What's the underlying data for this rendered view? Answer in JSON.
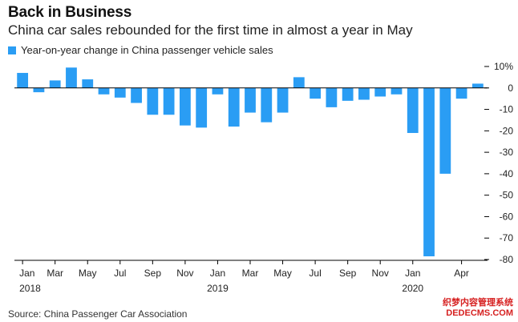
{
  "header": {
    "title": "Back in Business",
    "subtitle": "China car sales rebounded for the first time in almost a year in May"
  },
  "legend": {
    "label": "Year-on-year change in China passenger vehicle sales"
  },
  "source": "Source: China Passenger Car Association",
  "watermark": {
    "line1": "织梦内容管理系统",
    "line2": "DEDECMS.COM"
  },
  "colors": {
    "bar": "#2a9df4",
    "axis": "#000000",
    "text": "#222222"
  },
  "chart_data": {
    "type": "bar",
    "title": "Back in Business",
    "subtitle": "China car sales rebounded for the first time in almost a year in May",
    "legend": [
      "Year-on-year change in China passenger vehicle sales"
    ],
    "ylabel": "",
    "xlabel": "",
    "ylim": [
      -80,
      10
    ],
    "yticks": [
      10,
      0,
      -10,
      -20,
      -30,
      -40,
      -50,
      -60,
      -70,
      -80
    ],
    "ytick_labels": [
      "10%",
      "0",
      "-10",
      "-20",
      "-30",
      "-40",
      "-50",
      "-60",
      "-70",
      "-80"
    ],
    "categories": [
      "Jan 2018",
      "Feb 2018",
      "Mar 2018",
      "Apr 2018",
      "May 2018",
      "Jun 2018",
      "Jul 2018",
      "Aug 2018",
      "Sep 2018",
      "Oct 2018",
      "Nov 2018",
      "Dec 2018",
      "Jan 2019",
      "Feb 2019",
      "Mar 2019",
      "Apr 2019",
      "May 2019",
      "Jun 2019",
      "Jul 2019",
      "Aug 2019",
      "Sep 2019",
      "Oct 2019",
      "Nov 2019",
      "Dec 2019",
      "Jan 2020",
      "Feb 2020",
      "Mar 2020",
      "Apr 2020",
      "May 2020"
    ],
    "values": [
      7,
      -2,
      3.5,
      9.5,
      4,
      -3,
      -4.5,
      -7,
      -12.5,
      -12.5,
      -17.5,
      -18.5,
      -3,
      -18,
      -11.5,
      -16,
      -11.5,
      5,
      -5,
      -9,
      -6,
      -5.5,
      -4,
      -3,
      -21,
      -78.5,
      -40,
      -5,
      2
    ],
    "xtick_labels": [
      {
        "index": 0,
        "month": "Jan",
        "year": "2018"
      },
      {
        "index": 2,
        "month": "Mar",
        "year": ""
      },
      {
        "index": 4,
        "month": "May",
        "year": ""
      },
      {
        "index": 6,
        "month": "Jul",
        "year": ""
      },
      {
        "index": 8,
        "month": "Sep",
        "year": ""
      },
      {
        "index": 10,
        "month": "Nov",
        "year": ""
      },
      {
        "index": 12,
        "month": "Jan",
        "year": "2019"
      },
      {
        "index": 14,
        "month": "Mar",
        "year": ""
      },
      {
        "index": 16,
        "month": "May",
        "year": ""
      },
      {
        "index": 18,
        "month": "Jul",
        "year": ""
      },
      {
        "index": 20,
        "month": "Sep",
        "year": ""
      },
      {
        "index": 22,
        "month": "Nov",
        "year": ""
      },
      {
        "index": 24,
        "month": "Jan",
        "year": "2020"
      },
      {
        "index": 27,
        "month": "Apr",
        "year": ""
      }
    ],
    "grid": false,
    "legend_position": "top-left"
  }
}
